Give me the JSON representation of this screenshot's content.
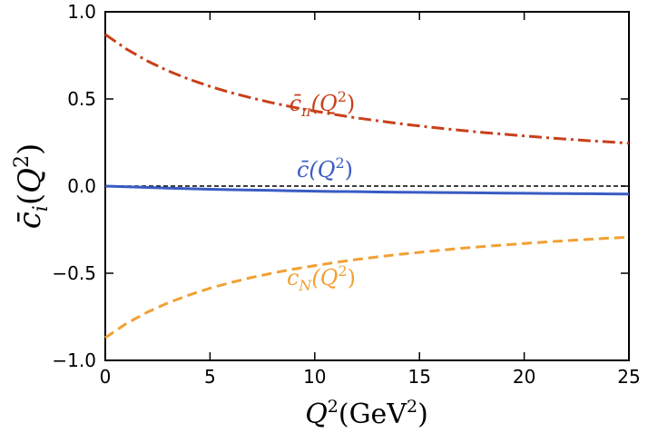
{
  "chart_data": {
    "type": "line",
    "title": "",
    "xlabel": "Q²(GeV²)",
    "ylabel": "c̄ᵢ(Q²)",
    "xlim": [
      0,
      25
    ],
    "ylim": [
      -1.0,
      1.0
    ],
    "x_ticks": [
      0,
      5,
      10,
      15,
      20,
      25
    ],
    "x_tick_labels": [
      "0",
      "5",
      "10",
      "15",
      "20",
      "25"
    ],
    "y_ticks": [
      -1.0,
      -0.5,
      0.0,
      0.5,
      1.0
    ],
    "y_tick_labels": [
      "−1.0",
      "−0.5",
      "0.0",
      "0.5",
      "1.0"
    ],
    "grid": false,
    "reference_lines": [
      {
        "y": 0.0,
        "color": "#000000",
        "style": "dashed"
      }
    ],
    "x": [
      0,
      1,
      2,
      3,
      4,
      5,
      6,
      7,
      8,
      9,
      10,
      11,
      12,
      13,
      14,
      15,
      16,
      17,
      18,
      19,
      20,
      21,
      22,
      23,
      24,
      25
    ],
    "series": [
      {
        "name": "c̄π(Q²)",
        "label_main": "c̄",
        "label_sub": "π",
        "label_paren": "(Q",
        "label_sup": "2",
        "label_close": ")",
        "color": "#c8401a",
        "style": "dashdot",
        "values": [
          0.87,
          0.787,
          0.718,
          0.661,
          0.613,
          0.572,
          0.536,
          0.505,
          0.477,
          0.452,
          0.43,
          0.41,
          0.391,
          0.375,
          0.359,
          0.345,
          0.332,
          0.32,
          0.308,
          0.298,
          0.288,
          0.278,
          0.27,
          0.261,
          0.254,
          0.246
        ]
      },
      {
        "name": "c̄(Q²)",
        "label_main": "c̄",
        "label_sub": "",
        "label_paren": "(Q",
        "label_sup": "2",
        "label_close": ")",
        "color": "#3a5bc4",
        "style": "solid",
        "values": [
          0.0,
          -0.004,
          -0.008,
          -0.012,
          -0.015,
          -0.018,
          -0.021,
          -0.023,
          -0.025,
          -0.027,
          -0.029,
          -0.031,
          -0.032,
          -0.034,
          -0.035,
          -0.036,
          -0.037,
          -0.038,
          -0.039,
          -0.04,
          -0.041,
          -0.042,
          -0.043,
          -0.044,
          -0.045,
          -0.046
        ]
      },
      {
        "name": "c̄N(Q²)",
        "label_main": "c̄",
        "label_sub": "N",
        "label_paren": "(Q",
        "label_sup": "2",
        "label_close": ")",
        "color": "#f2a033",
        "style": "dashed",
        "values": [
          -0.87,
          -0.789,
          -0.724,
          -0.67,
          -0.625,
          -0.586,
          -0.553,
          -0.524,
          -0.499,
          -0.476,
          -0.456,
          -0.438,
          -0.421,
          -0.406,
          -0.392,
          -0.38,
          -0.368,
          -0.357,
          -0.347,
          -0.338,
          -0.329,
          -0.321,
          -0.313,
          -0.306,
          -0.299,
          -0.293
        ]
      }
    ]
  }
}
